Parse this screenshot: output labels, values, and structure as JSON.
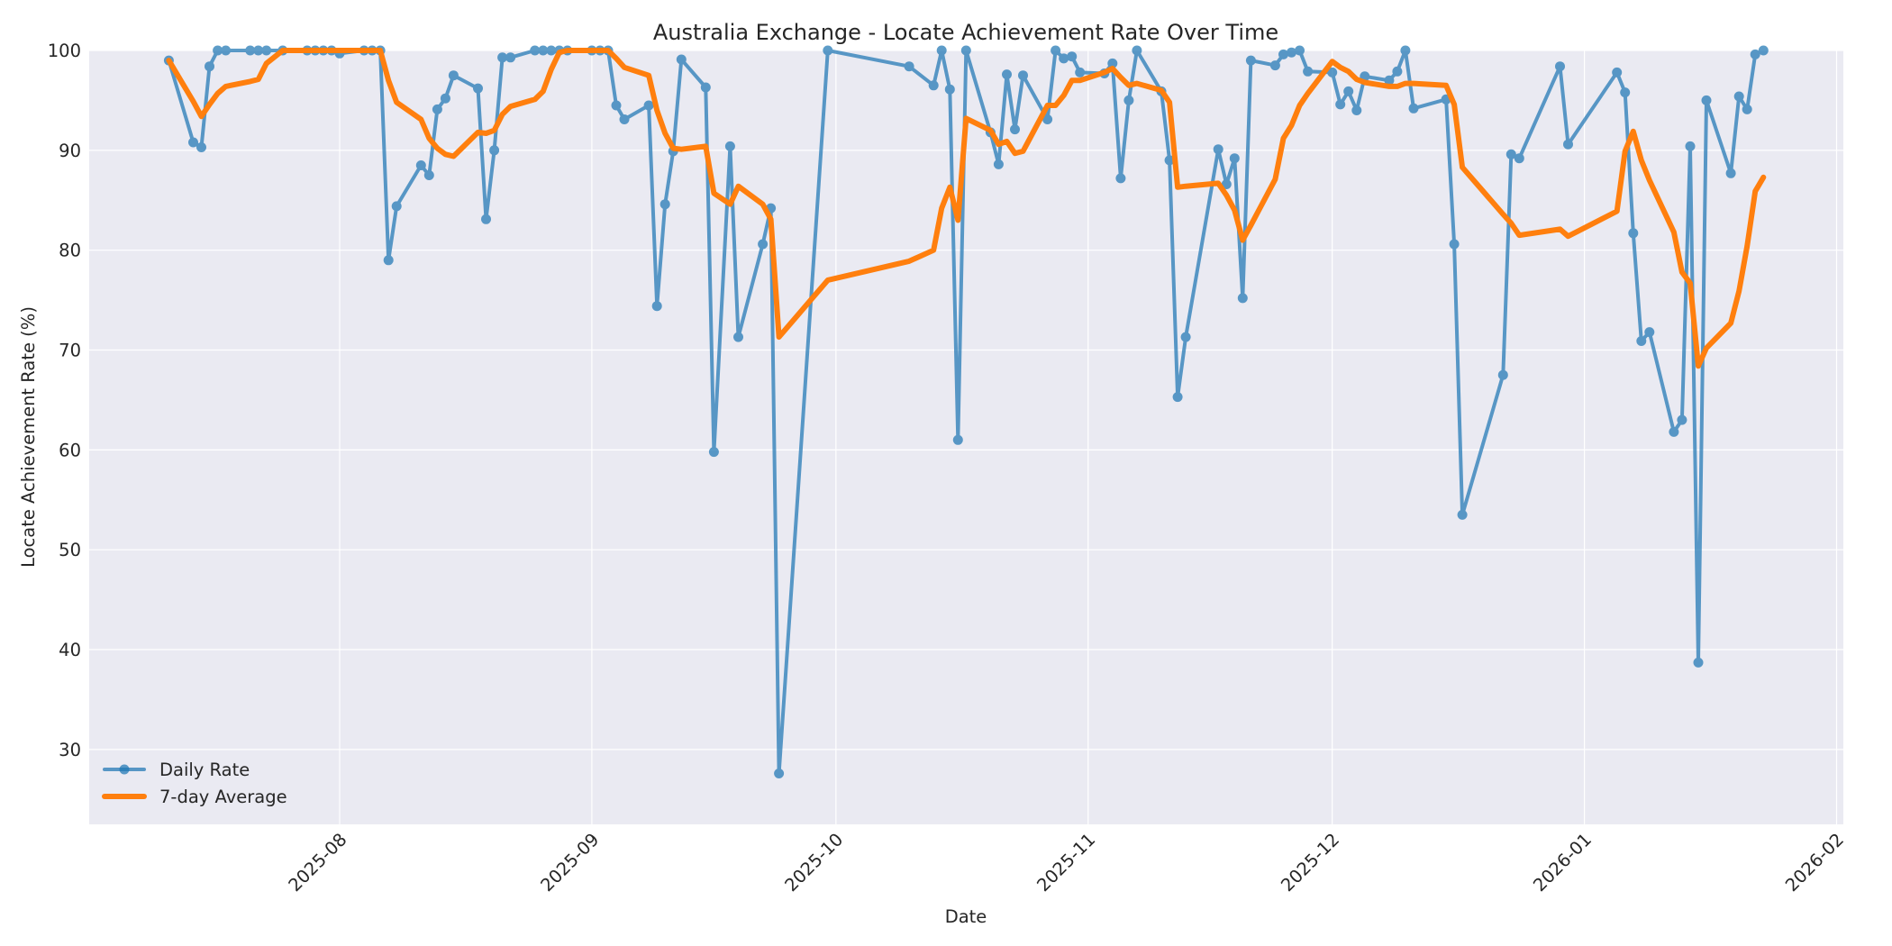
{
  "chart_data": {
    "type": "line",
    "title": "Australia Exchange - Locate Achievement Rate Over Time",
    "xlabel": "Date",
    "ylabel": "Locate Achievement Rate (%)",
    "ylim": [
      22.5,
      100
    ],
    "xlim": [
      "2025-07-04",
      "2026-02-01"
    ],
    "yticks": [
      30,
      40,
      50,
      60,
      70,
      80,
      90,
      100
    ],
    "xticks": [
      "2025-08",
      "2025-09",
      "2025-10",
      "2025-11",
      "2025-12",
      "2026-01",
      "2026-02"
    ],
    "xtick_dates": [
      "2025-08-01",
      "2025-09-01",
      "2025-10-01",
      "2025-11-01",
      "2025-12-01",
      "2026-01-01",
      "2026-02-01"
    ],
    "grid": true,
    "legend_position": "lower left",
    "colors": {
      "daily": "#1f77b4",
      "average": "#ff7f0e",
      "plot_bg": "#eaeaf2",
      "grid": "#ffffff",
      "text": "#262626"
    },
    "series": [
      {
        "name": "Daily Rate",
        "marker": "circle",
        "points": [
          [
            "2025-07-11",
            99.0
          ],
          [
            "2025-07-14",
            90.8
          ],
          [
            "2025-07-15",
            90.3
          ],
          [
            "2025-07-16",
            98.4
          ],
          [
            "2025-07-17",
            100.0
          ],
          [
            "2025-07-18",
            100.0
          ],
          [
            "2025-07-21",
            100.0
          ],
          [
            "2025-07-22",
            100.0
          ],
          [
            "2025-07-23",
            100.0
          ],
          [
            "2025-07-25",
            100.0
          ],
          [
            "2025-07-28",
            100.0
          ],
          [
            "2025-07-29",
            100.0
          ],
          [
            "2025-07-30",
            100.0
          ],
          [
            "2025-07-31",
            100.0
          ],
          [
            "2025-08-01",
            99.7
          ],
          [
            "2025-08-04",
            100.0
          ],
          [
            "2025-08-05",
            100.0
          ],
          [
            "2025-08-06",
            100.0
          ],
          [
            "2025-08-07",
            79.0
          ],
          [
            "2025-08-08",
            84.4
          ],
          [
            "2025-08-11",
            88.5
          ],
          [
            "2025-08-12",
            87.5
          ],
          [
            "2025-08-13",
            94.1
          ],
          [
            "2025-08-14",
            95.2
          ],
          [
            "2025-08-15",
            97.5
          ],
          [
            "2025-08-18",
            96.2
          ],
          [
            "2025-08-19",
            83.1
          ],
          [
            "2025-08-20",
            90.0
          ],
          [
            "2025-08-21",
            99.3
          ],
          [
            "2025-08-22",
            99.3
          ],
          [
            "2025-08-25",
            100.0
          ],
          [
            "2025-08-26",
            100.0
          ],
          [
            "2025-08-27",
            100.0
          ],
          [
            "2025-08-28",
            100.0
          ],
          [
            "2025-08-29",
            100.0
          ],
          [
            "2025-09-01",
            100.0
          ],
          [
            "2025-09-02",
            100.0
          ],
          [
            "2025-09-03",
            100.0
          ],
          [
            "2025-09-04",
            94.5
          ],
          [
            "2025-09-05",
            93.1
          ],
          [
            "2025-09-08",
            94.5
          ],
          [
            "2025-09-09",
            74.4
          ],
          [
            "2025-09-10",
            84.6
          ],
          [
            "2025-09-11",
            89.9
          ],
          [
            "2025-09-12",
            99.1
          ],
          [
            "2025-09-15",
            96.3
          ],
          [
            "2025-09-16",
            59.8
          ],
          [
            "2025-09-18",
            90.4
          ],
          [
            "2025-09-19",
            71.3
          ],
          [
            "2025-09-22",
            80.6
          ],
          [
            "2025-09-23",
            84.2
          ],
          [
            "2025-09-24",
            27.6
          ],
          [
            "2025-09-30",
            100.0
          ],
          [
            "2025-10-10",
            98.4
          ],
          [
            "2025-10-13",
            96.5
          ],
          [
            "2025-10-14",
            100.0
          ],
          [
            "2025-10-15",
            96.1
          ],
          [
            "2025-10-16",
            61.0
          ],
          [
            "2025-10-17",
            100.0
          ],
          [
            "2025-10-20",
            91.8
          ],
          [
            "2025-10-21",
            88.6
          ],
          [
            "2025-10-22",
            97.6
          ],
          [
            "2025-10-23",
            92.1
          ],
          [
            "2025-10-24",
            97.5
          ],
          [
            "2025-10-27",
            93.1
          ],
          [
            "2025-10-28",
            100.0
          ],
          [
            "2025-10-29",
            99.2
          ],
          [
            "2025-10-30",
            99.4
          ],
          [
            "2025-10-31",
            97.8
          ],
          [
            "2025-11-03",
            97.7
          ],
          [
            "2025-11-04",
            98.7
          ],
          [
            "2025-11-05",
            87.2
          ],
          [
            "2025-11-06",
            95.0
          ],
          [
            "2025-11-07",
            100.0
          ],
          [
            "2025-11-10",
            95.9
          ],
          [
            "2025-11-11",
            89.0
          ],
          [
            "2025-11-12",
            65.3
          ],
          [
            "2025-11-13",
            71.3
          ],
          [
            "2025-11-17",
            90.1
          ],
          [
            "2025-11-18",
            86.6
          ],
          [
            "2025-11-19",
            89.2
          ],
          [
            "2025-11-20",
            75.2
          ],
          [
            "2025-11-21",
            99.0
          ],
          [
            "2025-11-24",
            98.5
          ],
          [
            "2025-11-25",
            99.6
          ],
          [
            "2025-11-26",
            99.8
          ],
          [
            "2025-11-27",
            100.0
          ],
          [
            "2025-11-28",
            97.9
          ],
          [
            "2025-12-01",
            97.8
          ],
          [
            "2025-12-02",
            94.6
          ],
          [
            "2025-12-03",
            95.9
          ],
          [
            "2025-12-04",
            94.0
          ],
          [
            "2025-12-05",
            97.4
          ],
          [
            "2025-12-08",
            97.0
          ],
          [
            "2025-12-09",
            97.9
          ],
          [
            "2025-12-10",
            100.0
          ],
          [
            "2025-12-11",
            94.2
          ],
          [
            "2025-12-15",
            95.1
          ],
          [
            "2025-12-16",
            80.6
          ],
          [
            "2025-12-17",
            53.5
          ],
          [
            "2025-12-22",
            67.5
          ],
          [
            "2025-12-23",
            89.6
          ],
          [
            "2025-12-24",
            89.2
          ],
          [
            "2025-12-29",
            98.4
          ],
          [
            "2025-12-30",
            90.6
          ],
          [
            "2026-01-05",
            97.8
          ],
          [
            "2026-01-06",
            95.8
          ],
          [
            "2026-01-07",
            81.7
          ],
          [
            "2026-01-08",
            70.9
          ],
          [
            "2026-01-09",
            71.8
          ],
          [
            "2026-01-12",
            61.8
          ],
          [
            "2026-01-13",
            63.0
          ],
          [
            "2026-01-14",
            90.4
          ],
          [
            "2026-01-15",
            38.7
          ],
          [
            "2026-01-16",
            95.0
          ],
          [
            "2026-01-19",
            87.7
          ],
          [
            "2026-01-20",
            95.4
          ],
          [
            "2026-01-21",
            94.1
          ],
          [
            "2026-01-22",
            99.6
          ],
          [
            "2026-01-23",
            100.0
          ]
        ]
      },
      {
        "name": "7-day Average",
        "marker": "none",
        "points": [
          [
            "2025-07-11",
            99.0
          ],
          [
            "2025-07-14",
            94.9
          ],
          [
            "2025-07-15",
            93.4
          ],
          [
            "2025-07-16",
            94.6
          ],
          [
            "2025-07-17",
            95.7
          ],
          [
            "2025-07-18",
            96.4
          ],
          [
            "2025-07-21",
            96.9
          ],
          [
            "2025-07-22",
            97.1
          ],
          [
            "2025-07-23",
            98.7
          ],
          [
            "2025-07-25",
            100.0
          ],
          [
            "2025-07-28",
            100.0
          ],
          [
            "2025-07-29",
            100.0
          ],
          [
            "2025-07-30",
            100.0
          ],
          [
            "2025-07-31",
            100.0
          ],
          [
            "2025-08-01",
            100.0
          ],
          [
            "2025-08-04",
            100.0
          ],
          [
            "2025-08-05",
            100.0
          ],
          [
            "2025-08-06",
            100.0
          ],
          [
            "2025-08-07",
            97.0
          ],
          [
            "2025-08-08",
            94.8
          ],
          [
            "2025-08-11",
            93.1
          ],
          [
            "2025-08-12",
            91.2
          ],
          [
            "2025-08-13",
            90.2
          ],
          [
            "2025-08-14",
            89.6
          ],
          [
            "2025-08-15",
            89.4
          ],
          [
            "2025-08-18",
            91.8
          ],
          [
            "2025-08-19",
            91.7
          ],
          [
            "2025-08-20",
            92.0
          ],
          [
            "2025-08-21",
            93.6
          ],
          [
            "2025-08-22",
            94.4
          ],
          [
            "2025-08-25",
            95.1
          ],
          [
            "2025-08-26",
            95.9
          ],
          [
            "2025-08-27",
            98.1
          ],
          [
            "2025-08-28",
            99.8
          ],
          [
            "2025-08-29",
            100.0
          ],
          [
            "2025-09-01",
            100.0
          ],
          [
            "2025-09-02",
            100.0
          ],
          [
            "2025-09-03",
            100.0
          ],
          [
            "2025-09-04",
            99.2
          ],
          [
            "2025-09-05",
            98.3
          ],
          [
            "2025-09-08",
            97.5
          ],
          [
            "2025-09-09",
            94.0
          ],
          [
            "2025-09-10",
            91.7
          ],
          [
            "2025-09-11",
            90.2
          ],
          [
            "2025-09-12",
            90.1
          ],
          [
            "2025-09-15",
            90.4
          ],
          [
            "2025-09-16",
            85.7
          ],
          [
            "2025-09-18",
            84.6
          ],
          [
            "2025-09-19",
            86.4
          ],
          [
            "2025-09-22",
            84.6
          ],
          [
            "2025-09-23",
            83.1
          ],
          [
            "2025-09-24",
            71.3
          ],
          [
            "2025-09-30",
            77.0
          ],
          [
            "2025-10-10",
            78.9
          ],
          [
            "2025-10-13",
            80.0
          ],
          [
            "2025-10-14",
            84.2
          ],
          [
            "2025-10-15",
            86.3
          ],
          [
            "2025-10-16",
            83.0
          ],
          [
            "2025-10-17",
            93.2
          ],
          [
            "2025-10-20",
            92.0
          ],
          [
            "2025-10-21",
            90.6
          ],
          [
            "2025-10-22",
            90.9
          ],
          [
            "2025-10-23",
            89.7
          ],
          [
            "2025-10-24",
            89.9
          ],
          [
            "2025-10-27",
            94.5
          ],
          [
            "2025-10-28",
            94.5
          ],
          [
            "2025-10-29",
            95.5
          ],
          [
            "2025-10-30",
            97.0
          ],
          [
            "2025-10-31",
            97.0
          ],
          [
            "2025-11-03",
            97.8
          ],
          [
            "2025-11-04",
            98.2
          ],
          [
            "2025-11-05",
            97.3
          ],
          [
            "2025-11-06",
            96.5
          ],
          [
            "2025-11-07",
            96.7
          ],
          [
            "2025-11-10",
            96.0
          ],
          [
            "2025-11-11",
            94.8
          ],
          [
            "2025-11-12",
            86.3
          ],
          [
            "2025-11-13",
            86.4
          ],
          [
            "2025-11-17",
            86.7
          ],
          [
            "2025-11-18",
            85.5
          ],
          [
            "2025-11-19",
            84.0
          ],
          [
            "2025-11-20",
            81.0
          ],
          [
            "2025-11-21",
            82.5
          ],
          [
            "2025-11-24",
            87.1
          ],
          [
            "2025-11-25",
            91.2
          ],
          [
            "2025-11-26",
            92.5
          ],
          [
            "2025-11-27",
            94.5
          ],
          [
            "2025-11-28",
            95.7
          ],
          [
            "2025-12-01",
            98.9
          ],
          [
            "2025-12-02",
            98.3
          ],
          [
            "2025-12-03",
            97.9
          ],
          [
            "2025-12-04",
            97.1
          ],
          [
            "2025-12-05",
            96.8
          ],
          [
            "2025-12-08",
            96.4
          ],
          [
            "2025-12-09",
            96.4
          ],
          [
            "2025-12-10",
            96.7
          ],
          [
            "2025-12-11",
            96.7
          ],
          [
            "2025-12-15",
            96.5
          ],
          [
            "2025-12-16",
            94.6
          ],
          [
            "2025-12-17",
            88.3
          ],
          [
            "2025-12-22",
            83.6
          ],
          [
            "2025-12-23",
            82.7
          ],
          [
            "2025-12-24",
            81.5
          ],
          [
            "2025-12-29",
            82.1
          ],
          [
            "2025-12-30",
            81.4
          ],
          [
            "2026-01-05",
            83.9
          ],
          [
            "2026-01-06",
            89.9
          ],
          [
            "2026-01-07",
            91.9
          ],
          [
            "2026-01-08",
            89.0
          ],
          [
            "2026-01-09",
            87.0
          ],
          [
            "2026-01-12",
            81.8
          ],
          [
            "2026-01-13",
            77.8
          ],
          [
            "2026-01-14",
            76.7
          ],
          [
            "2026-01-15",
            68.4
          ],
          [
            "2026-01-16",
            70.2
          ],
          [
            "2026-01-19",
            72.7
          ],
          [
            "2026-01-20",
            75.9
          ],
          [
            "2026-01-21",
            80.4
          ],
          [
            "2026-01-22",
            85.9
          ],
          [
            "2026-01-23",
            87.3
          ]
        ]
      }
    ]
  },
  "legend": {
    "daily_label": "Daily Rate",
    "average_label": "7-day Average"
  }
}
